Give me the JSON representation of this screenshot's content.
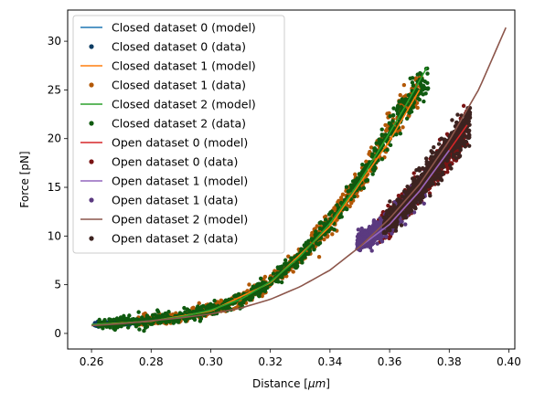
{
  "chart_data": {
    "type": "scatter",
    "xlabel": "Distance [",
    "xlabel_unit": "μm",
    "xlabel_suffix": "]",
    "ylabel": "Force [pN]",
    "xlim": [
      0.252,
      0.402
    ],
    "ylim": [
      -1.6,
      33.2
    ],
    "xticks": [
      0.26,
      0.28,
      0.3,
      0.32,
      0.34,
      0.36,
      0.38,
      0.4
    ],
    "xtick_labels": [
      "0.26",
      "0.28",
      "0.30",
      "0.32",
      "0.34",
      "0.36",
      "0.38",
      "0.40"
    ],
    "yticks": [
      0,
      5,
      10,
      15,
      20,
      25,
      30
    ],
    "ytick_labels": [
      "0",
      "5",
      "10",
      "15",
      "20",
      "25",
      "30"
    ],
    "grid": false,
    "legend_position": "top-left",
    "legend": [
      {
        "label": "Closed dataset 0 (model)",
        "kind": "line",
        "color": "#1f77b4"
      },
      {
        "label": "Closed dataset 0 (data)",
        "kind": "point",
        "color": "#0b3c63"
      },
      {
        "label": "Closed dataset 1 (model)",
        "kind": "line",
        "color": "#ff7f0e"
      },
      {
        "label": "Closed dataset 1 (data)",
        "kind": "point",
        "color": "#b35806"
      },
      {
        "label": "Closed dataset 2 (model)",
        "kind": "line",
        "color": "#2ca02c"
      },
      {
        "label": "Closed dataset 2 (data)",
        "kind": "point",
        "color": "#0f5a0f"
      },
      {
        "label": "Open dataset 0 (model)",
        "kind": "line",
        "color": "#d62728"
      },
      {
        "label": "Open dataset 0 (data)",
        "kind": "point",
        "color": "#7a1414"
      },
      {
        "label": "Open dataset 1 (model)",
        "kind": "line",
        "color": "#9467bd"
      },
      {
        "label": "Open dataset 1 (data)",
        "kind": "point",
        "color": "#5b3a80"
      },
      {
        "label": "Open dataset 2 (model)",
        "kind": "line",
        "color": "#8c564b"
      },
      {
        "label": "Open dataset 2 (data)",
        "kind": "point",
        "color": "#3d2320"
      }
    ],
    "model_series": [
      {
        "name": "Closed dataset 0 (model)",
        "color": "#1f77b4",
        "x": [
          0.26,
          0.27,
          0.28
        ],
        "y": [
          0.9,
          1.05,
          1.25
        ]
      },
      {
        "name": "Closed dataset 1 (model)",
        "color": "#ff7f0e",
        "x": [
          0.26,
          0.28,
          0.3,
          0.32,
          0.34,
          0.36,
          0.37
        ],
        "y": [
          0.9,
          1.25,
          2.3,
          5.2,
          11.0,
          19.8,
          25.0
        ]
      },
      {
        "name": "Closed dataset 2 (model)",
        "color": "#2ca02c",
        "x": [
          0.26,
          0.27,
          0.28,
          0.29,
          0.3,
          0.31,
          0.32,
          0.33,
          0.34,
          0.35,
          0.36,
          0.365,
          0.3725
        ],
        "y": [
          0.9,
          1.05,
          1.3,
          1.7,
          2.4,
          3.5,
          5.3,
          7.9,
          11.3,
          15.6,
          20.6,
          23.2,
          27.3
        ]
      },
      {
        "name": "Open dataset 0 (model)",
        "color": "#d62728",
        "x": [
          0.36,
          0.37,
          0.38,
          0.386
        ],
        "y": [
          11.2,
          14.6,
          18.8,
          21.4
        ]
      },
      {
        "name": "Open dataset 1 (model)",
        "color": "#9467bd",
        "x": [
          0.35,
          0.36,
          0.37,
          0.38
        ],
        "y": [
          8.9,
          11.2,
          14.6,
          18.8
        ]
      },
      {
        "name": "Open dataset 2 (model)",
        "color": "#8c564b",
        "x": [
          0.26,
          0.27,
          0.28,
          0.29,
          0.3,
          0.31,
          0.32,
          0.33,
          0.34,
          0.35,
          0.36,
          0.37,
          0.38,
          0.39,
          0.399
        ],
        "y": [
          0.8,
          1.0,
          1.3,
          1.6,
          2.0,
          2.6,
          3.5,
          4.8,
          6.5,
          8.9,
          11.8,
          15.3,
          19.8,
          25.1,
          31.4
        ]
      }
    ],
    "data_series": [
      {
        "name": "Closed dataset 0 (data)",
        "color": "#0b3c63",
        "x_range": [
          0.261,
          0.29
        ],
        "noise": 0.25,
        "x": [
          0.26,
          0.27,
          0.28,
          0.29
        ],
        "y": [
          0.9,
          1.05,
          1.3,
          1.7
        ]
      },
      {
        "name": "Closed dataset 1 (data)",
        "color": "#b35806",
        "x_range": [
          0.275,
          0.371
        ],
        "noise": 0.7,
        "x": [
          0.27,
          0.28,
          0.29,
          0.3,
          0.31,
          0.32,
          0.33,
          0.34,
          0.35,
          0.36,
          0.37
        ],
        "y": [
          1.05,
          1.3,
          1.7,
          2.4,
          3.5,
          5.3,
          7.9,
          11.3,
          15.6,
          20.6,
          25.5
        ]
      },
      {
        "name": "Closed dataset 2 (data)",
        "color": "#0f5a0f",
        "x_range": [
          0.262,
          0.373
        ],
        "noise": 0.7,
        "x": [
          0.26,
          0.27,
          0.28,
          0.29,
          0.3,
          0.31,
          0.32,
          0.33,
          0.34,
          0.35,
          0.36,
          0.365,
          0.373
        ],
        "y": [
          0.9,
          1.05,
          1.3,
          1.7,
          2.4,
          3.5,
          5.3,
          7.9,
          11.3,
          15.6,
          20.6,
          23.2,
          26.0
        ]
      },
      {
        "name": "Open dataset 0 (data)",
        "color": "#7a1414",
        "x_range": [
          0.356,
          0.386
        ],
        "noise": 0.8,
        "x": [
          0.356,
          0.36,
          0.37,
          0.38,
          0.386
        ],
        "y": [
          10.5,
          11.6,
          14.8,
          18.8,
          21.4
        ]
      },
      {
        "name": "Open dataset 1 (data)",
        "color": "#5b3a80",
        "x_range": [
          0.349,
          0.372
        ],
        "noise": 0.7,
        "x": [
          0.349,
          0.355,
          0.36,
          0.365,
          0.372
        ],
        "y": [
          9.3,
          10.2,
          11.5,
          13.0,
          15.4
        ]
      },
      {
        "name": "Open dataset 2 (data)",
        "color": "#3d2320",
        "x_range": [
          0.358,
          0.387
        ],
        "noise": 0.8,
        "x": [
          0.358,
          0.365,
          0.37,
          0.375,
          0.38,
          0.387
        ],
        "y": [
          11.0,
          13.0,
          15.0,
          17.0,
          19.0,
          21.5
        ]
      }
    ]
  }
}
